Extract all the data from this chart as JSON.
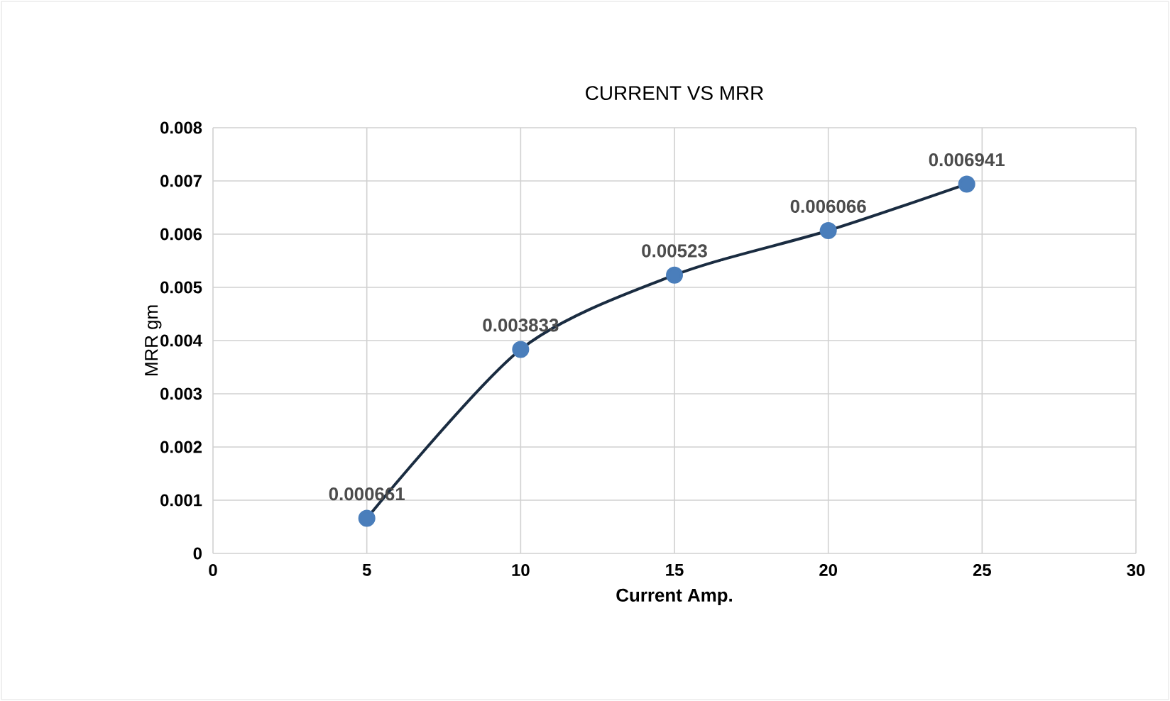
{
  "chart_data": {
    "type": "line",
    "title": "CURRENT VS MRR",
    "xlabel": "Current  Amp.",
    "ylabel": "MRR gm",
    "series": [
      {
        "color": "#4a7ebb",
        "x": [
          5,
          10,
          15,
          20,
          24.5
        ],
        "values": [
          0.000661,
          0.003833,
          0.00523,
          0.006066,
          0.006941
        ]
      }
    ],
    "xlim": [
      0,
      30
    ],
    "xticks": [
      0,
      5,
      10,
      15,
      20,
      25,
      30
    ],
    "ylim": [
      0,
      0.008
    ],
    "yticks": [
      0,
      0.001,
      0.002,
      0.003,
      0.004,
      0.005,
      0.006,
      0.007,
      0.008
    ],
    "grid": true,
    "marker": "circle",
    "line_style": "solid",
    "data_labels": true
  }
}
